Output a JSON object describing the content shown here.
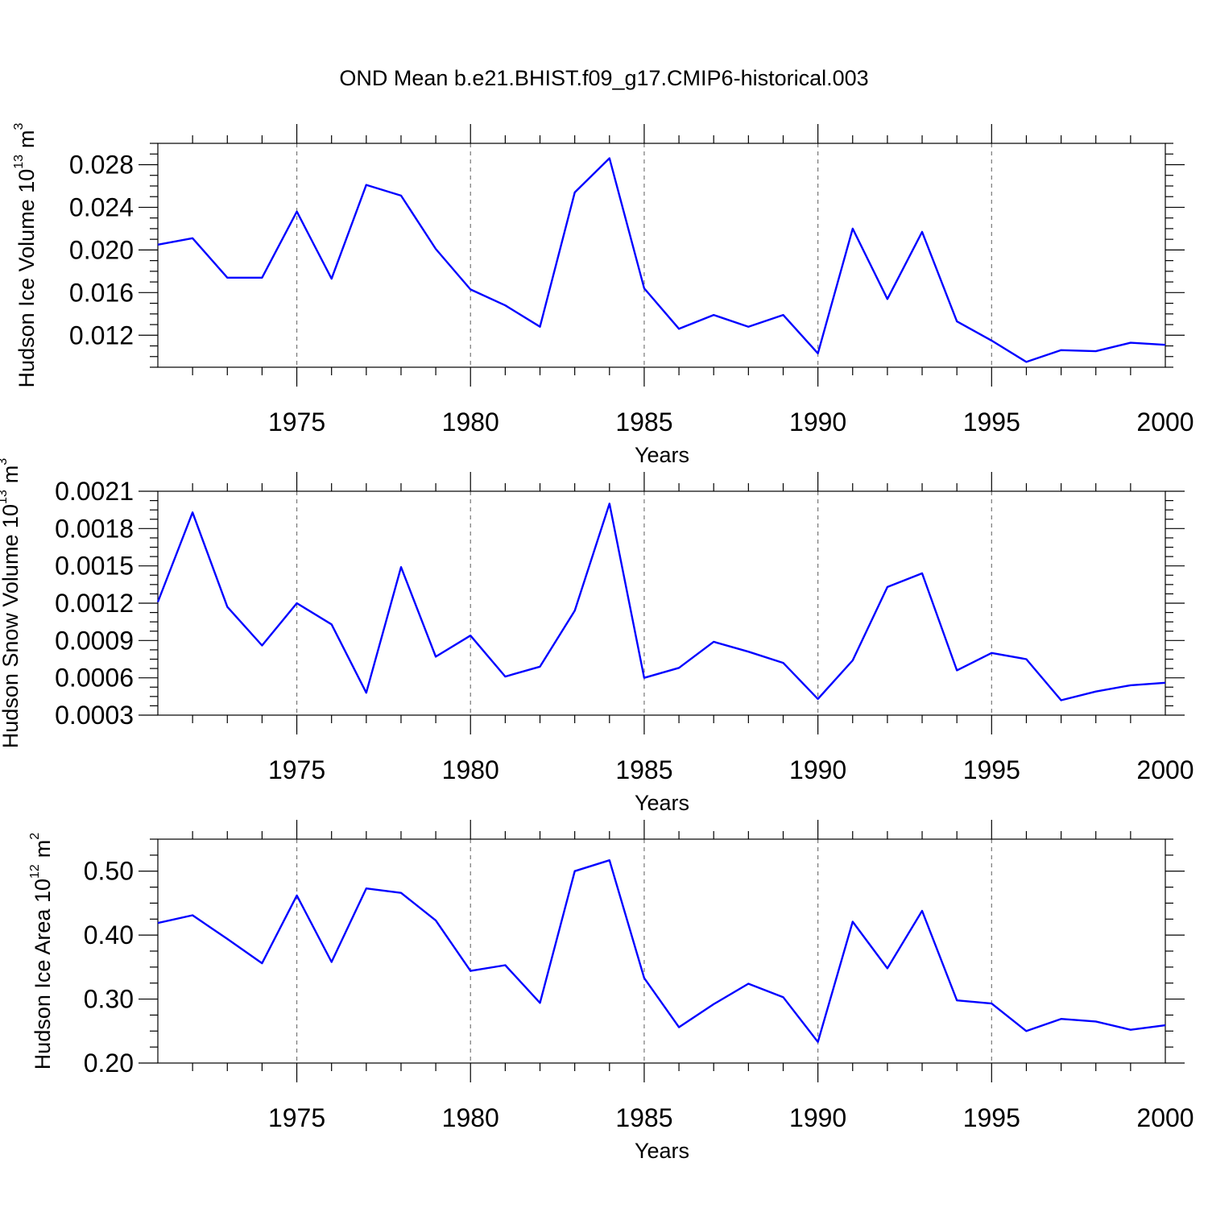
{
  "title": "OND Mean b.e21.BHIST.f09_g17.CMIP6-historical.003",
  "colors": {
    "line": "#0000ff",
    "axis": "#000000",
    "grid": "#777777"
  },
  "chart_data": [
    {
      "type": "line",
      "ylabel_main": "Hudson Ice Volume 10",
      "ylabel_exp": "13",
      "ylabel_unit": "m",
      "ylabel_unit_exp": "3",
      "xlabel": "Years",
      "xlim": [
        1971,
        2000
      ],
      "ylim": [
        0.009,
        0.03
      ],
      "yticks": [
        0.012,
        0.016,
        0.02,
        0.024,
        0.028
      ],
      "ytick_labels": [
        "0.012",
        "0.016",
        "0.020",
        "0.024",
        "0.028"
      ],
      "xticks": [
        1975,
        1980,
        1985,
        1990,
        1995,
        2000
      ],
      "xtick_labels": [
        "1975",
        "1980",
        "1985",
        "1990",
        "1995",
        "2000"
      ],
      "x": [
        1971,
        1972,
        1973,
        1974,
        1975,
        1976,
        1977,
        1978,
        1979,
        1980,
        1981,
        1982,
        1983,
        1984,
        1985,
        1986,
        1987,
        1988,
        1989,
        1990,
        1991,
        1992,
        1993,
        1994,
        1995,
        1996,
        1997,
        1998,
        1999,
        2000
      ],
      "series": [
        {
          "name": "Hudson Ice Volume",
          "values": [
            0.0205,
            0.0211,
            0.0174,
            0.0174,
            0.0236,
            0.0173,
            0.0261,
            0.0251,
            0.0201,
            0.0163,
            0.0148,
            0.0128,
            0.0254,
            0.0286,
            0.0164,
            0.0126,
            0.0139,
            0.0128,
            0.0139,
            0.0103,
            0.022,
            0.0154,
            0.0217,
            0.0133,
            0.0115,
            0.0095,
            0.0106,
            0.0105,
            0.0113,
            0.0111
          ]
        }
      ]
    },
    {
      "type": "line",
      "ylabel_main": "Hudson Snow Volume 10",
      "ylabel_exp": "13",
      "ylabel_unit": "m",
      "ylabel_unit_exp": "3",
      "xlabel": "Years",
      "xlim": [
        1971,
        2000
      ],
      "ylim": [
        0.0003,
        0.0021
      ],
      "yticks": [
        0.0003,
        0.0006,
        0.0009,
        0.0012,
        0.0015,
        0.0018,
        0.0021
      ],
      "ytick_labels": [
        "0.0003",
        "0.0006",
        "0.0009",
        "0.0012",
        "0.0015",
        "0.0018",
        "0.0021"
      ],
      "xticks": [
        1975,
        1980,
        1985,
        1990,
        1995,
        2000
      ],
      "xtick_labels": [
        "1975",
        "1980",
        "1985",
        "1990",
        "1995",
        "2000"
      ],
      "x": [
        1971,
        1972,
        1973,
        1974,
        1975,
        1976,
        1977,
        1978,
        1979,
        1980,
        1981,
        1982,
        1983,
        1984,
        1985,
        1986,
        1987,
        1988,
        1989,
        1990,
        1991,
        1992,
        1993,
        1994,
        1995,
        1996,
        1997,
        1998,
        1999,
        2000
      ],
      "series": [
        {
          "name": "Hudson Snow Volume",
          "values": [
            0.00121,
            0.00193,
            0.00117,
            0.00086,
            0.0012,
            0.00103,
            0.00048,
            0.00149,
            0.00077,
            0.00094,
            0.00061,
            0.00069,
            0.00114,
            0.002,
            0.0006,
            0.00068,
            0.00089,
            0.00081,
            0.00072,
            0.00043,
            0.00074,
            0.00133,
            0.00144,
            0.00066,
            0.0008,
            0.00075,
            0.00042,
            0.00049,
            0.00054,
            0.00056
          ]
        }
      ]
    },
    {
      "type": "line",
      "ylabel_main": "Hudson Ice Area 10",
      "ylabel_exp": "12",
      "ylabel_unit": "m",
      "ylabel_unit_exp": "2",
      "xlabel": "Years",
      "xlim": [
        1971,
        2000
      ],
      "ylim": [
        0.2,
        0.55
      ],
      "yticks": [
        0.2,
        0.3,
        0.4,
        0.5
      ],
      "ytick_labels": [
        "0.20",
        "0.30",
        "0.40",
        "0.50"
      ],
      "xticks": [
        1975,
        1980,
        1985,
        1990,
        1995,
        2000
      ],
      "xtick_labels": [
        "1975",
        "1980",
        "1985",
        "1990",
        "1995",
        "2000"
      ],
      "x": [
        1971,
        1972,
        1973,
        1974,
        1975,
        1976,
        1977,
        1978,
        1979,
        1980,
        1981,
        1982,
        1983,
        1984,
        1985,
        1986,
        1987,
        1988,
        1989,
        1990,
        1991,
        1992,
        1993,
        1994,
        1995,
        1996,
        1997,
        1998,
        1999,
        2000
      ],
      "series": [
        {
          "name": "Hudson Ice Area",
          "values": [
            0.419,
            0.431,
            0.394,
            0.356,
            0.462,
            0.358,
            0.473,
            0.466,
            0.423,
            0.344,
            0.353,
            0.294,
            0.5,
            0.517,
            0.333,
            0.256,
            0.292,
            0.324,
            0.303,
            0.233,
            0.421,
            0.348,
            0.438,
            0.298,
            0.293,
            0.25,
            0.269,
            0.265,
            0.252,
            0.259
          ]
        }
      ]
    }
  ]
}
